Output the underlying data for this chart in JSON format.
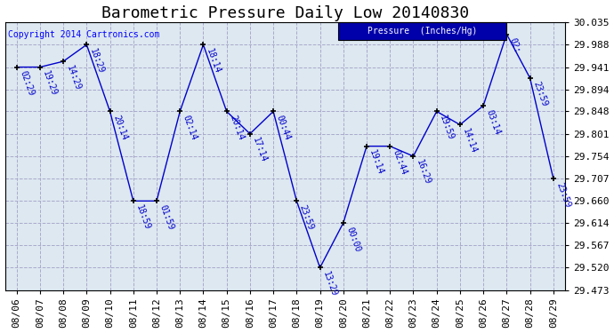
{
  "title": "Barometric Pressure Daily Low 20140830",
  "copyright": "Copyright 2014 Cartronics.com",
  "legend_text": "Pressure  (Inches/Hg)",
  "background_color": "#ffffff",
  "plot_bg_color": "#dde8f0",
  "grid_color": "#aaaacc",
  "line_color": "#0000cc",
  "marker_color": "#000000",
  "legend_bg": "#0000aa",
  "legend_fg": "#ffffff",
  "points": [
    {
      "date": "08/06",
      "value": 29.941,
      "label": "02:29"
    },
    {
      "date": "08/07",
      "value": 29.941,
      "label": "19:29"
    },
    {
      "date": "08/08",
      "value": 29.953,
      "label": "14:29"
    },
    {
      "date": "08/09",
      "value": 29.988,
      "label": "18:29"
    },
    {
      "date": "08/10",
      "value": 29.848,
      "label": "20:14"
    },
    {
      "date": "08/11",
      "value": 29.66,
      "label": "18:59"
    },
    {
      "date": "08/12",
      "value": 29.66,
      "label": "01:59"
    },
    {
      "date": "08/13",
      "value": 29.848,
      "label": "02:14"
    },
    {
      "date": "08/14",
      "value": 29.988,
      "label": "18:14"
    },
    {
      "date": "08/15",
      "value": 29.848,
      "label": "20:14"
    },
    {
      "date": "08/16",
      "value": 29.801,
      "label": "17:14"
    },
    {
      "date": "08/17",
      "value": 29.848,
      "label": "00:44"
    },
    {
      "date": "08/18",
      "value": 29.66,
      "label": "23:59"
    },
    {
      "date": "08/19",
      "value": 29.52,
      "label": "13:29"
    },
    {
      "date": "08/20",
      "value": 29.614,
      "label": "00:00"
    },
    {
      "date": "08/21",
      "value": 29.775,
      "label": "19:14"
    },
    {
      "date": "08/22",
      "value": 29.775,
      "label": "02:44"
    },
    {
      "date": "08/23",
      "value": 29.754,
      "label": "16:29"
    },
    {
      "date": "08/24",
      "value": 29.848,
      "label": "19:59"
    },
    {
      "date": "08/25",
      "value": 29.82,
      "label": "14:14"
    },
    {
      "date": "08/26",
      "value": 29.86,
      "label": "03:14"
    },
    {
      "date": "08/27",
      "value": 30.01,
      "label": "02:"
    },
    {
      "date": "08/28",
      "value": 29.918,
      "label": "23:59"
    },
    {
      "date": "08/29",
      "value": 29.707,
      "label": "23:59"
    }
  ],
  "ylim": [
    29.473,
    30.035
  ],
  "yticks": [
    29.473,
    29.52,
    29.567,
    29.614,
    29.66,
    29.707,
    29.754,
    29.801,
    29.848,
    29.894,
    29.941,
    29.988,
    30.035
  ],
  "title_fontsize": 13,
  "label_fontsize": 7,
  "tick_fontsize": 8,
  "copyright_fontsize": 7
}
